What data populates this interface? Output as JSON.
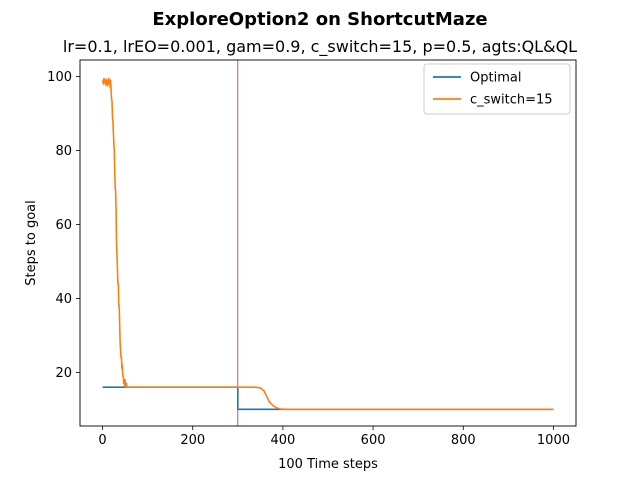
{
  "chart_data": {
    "type": "line",
    "suptitle": "ExploreOption2 on ShortcutMaze",
    "title": "lr=0.1, lrEO=0.001, gam=0.9, c_switch=15, p=0.5, agts:QL&QL",
    "xlabel": "100 Time steps",
    "ylabel": "Steps to goal",
    "xlim": [
      -50,
      1050
    ],
    "ylim": [
      5.5,
      104.5
    ],
    "xticks": [
      0,
      200,
      400,
      600,
      800,
      1000
    ],
    "yticks": [
      20,
      40,
      60,
      80,
      100
    ],
    "grid": false,
    "legend_position": "upper right",
    "vline": {
      "x": 300,
      "color": "#d62728"
    },
    "series": [
      {
        "name": "Optimal",
        "color": "#1f77b4",
        "points": [
          [
            0,
            16
          ],
          [
            300,
            16
          ],
          [
            300,
            10
          ],
          [
            1000,
            10
          ]
        ]
      },
      {
        "name": "c_switch=15",
        "color": "#ff7f0e",
        "points": [
          [
            0,
            99
          ],
          [
            2,
            98
          ],
          [
            3,
            99.5
          ],
          [
            5,
            98.5
          ],
          [
            6,
            99
          ],
          [
            7,
            97.8
          ],
          [
            8,
            99.3
          ],
          [
            9,
            98.2
          ],
          [
            10,
            99
          ],
          [
            11,
            97.5
          ],
          [
            12,
            99
          ],
          [
            13,
            98
          ],
          [
            14,
            99.5
          ],
          [
            15,
            98.7
          ],
          [
            16,
            99
          ],
          [
            17,
            97
          ],
          [
            18,
            99
          ],
          [
            19,
            96
          ],
          [
            20,
            94
          ],
          [
            21,
            93.5
          ],
          [
            22,
            89
          ],
          [
            23,
            88
          ],
          [
            24,
            85
          ],
          [
            25,
            82
          ],
          [
            26,
            80
          ],
          [
            27,
            75
          ],
          [
            28,
            70
          ],
          [
            29,
            69
          ],
          [
            30,
            64
          ],
          [
            31,
            55
          ],
          [
            32,
            52
          ],
          [
            33,
            48
          ],
          [
            34,
            44
          ],
          [
            35,
            44
          ],
          [
            36,
            38
          ],
          [
            37,
            38
          ],
          [
            38,
            33
          ],
          [
            39,
            28
          ],
          [
            40,
            26
          ],
          [
            41,
            24
          ],
          [
            42,
            24
          ],
          [
            43,
            21
          ],
          [
            44,
            22
          ],
          [
            45,
            19
          ],
          [
            46,
            19
          ],
          [
            47,
            17
          ],
          [
            48,
            18
          ],
          [
            49,
            16.5
          ],
          [
            50,
            18
          ],
          [
            51,
            17
          ],
          [
            52,
            16
          ],
          [
            53,
            17
          ],
          [
            54,
            16
          ],
          [
            300,
            16
          ],
          [
            340,
            16
          ],
          [
            350,
            15.8
          ],
          [
            358,
            15
          ],
          [
            364,
            13.5
          ],
          [
            370,
            12
          ],
          [
            378,
            11
          ],
          [
            386,
            10.4
          ],
          [
            395,
            10.1
          ],
          [
            410,
            10
          ],
          [
            1000,
            10
          ]
        ]
      }
    ]
  }
}
